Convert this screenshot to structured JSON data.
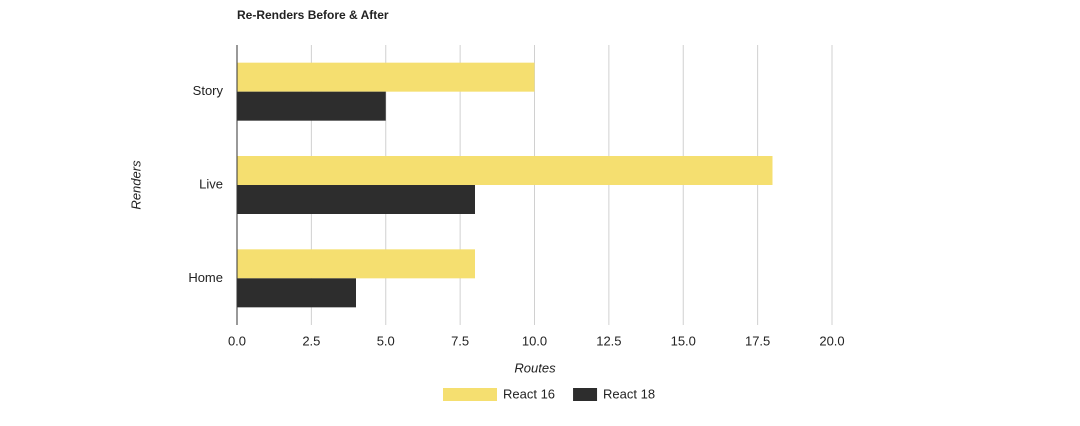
{
  "chart_data": {
    "type": "hbar",
    "title": "Re-Renders Before & After",
    "x_label": "Routes",
    "y_label": "Renders",
    "categories": [
      "Story",
      "Live",
      "Home"
    ],
    "series": [
      {
        "name": "React 16",
        "color": "#f5df70",
        "values": [
          10,
          18,
          8
        ]
      },
      {
        "name": "React 18",
        "color": "#2d2d2d",
        "values": [
          5,
          8,
          4
        ]
      }
    ],
    "xlim": [
      0,
      20
    ],
    "xticks": [
      {
        "value": 0,
        "label": "0.0"
      },
      2.5,
      {
        "value": 5,
        "label": "5.0"
      },
      7.5,
      {
        "value": 10,
        "label": "10.0"
      },
      12.5,
      {
        "value": 15,
        "label": "15.0"
      },
      17.5,
      {
        "value": 20,
        "label": "20.0"
      }
    ],
    "grid": true,
    "legend": "bottom"
  }
}
